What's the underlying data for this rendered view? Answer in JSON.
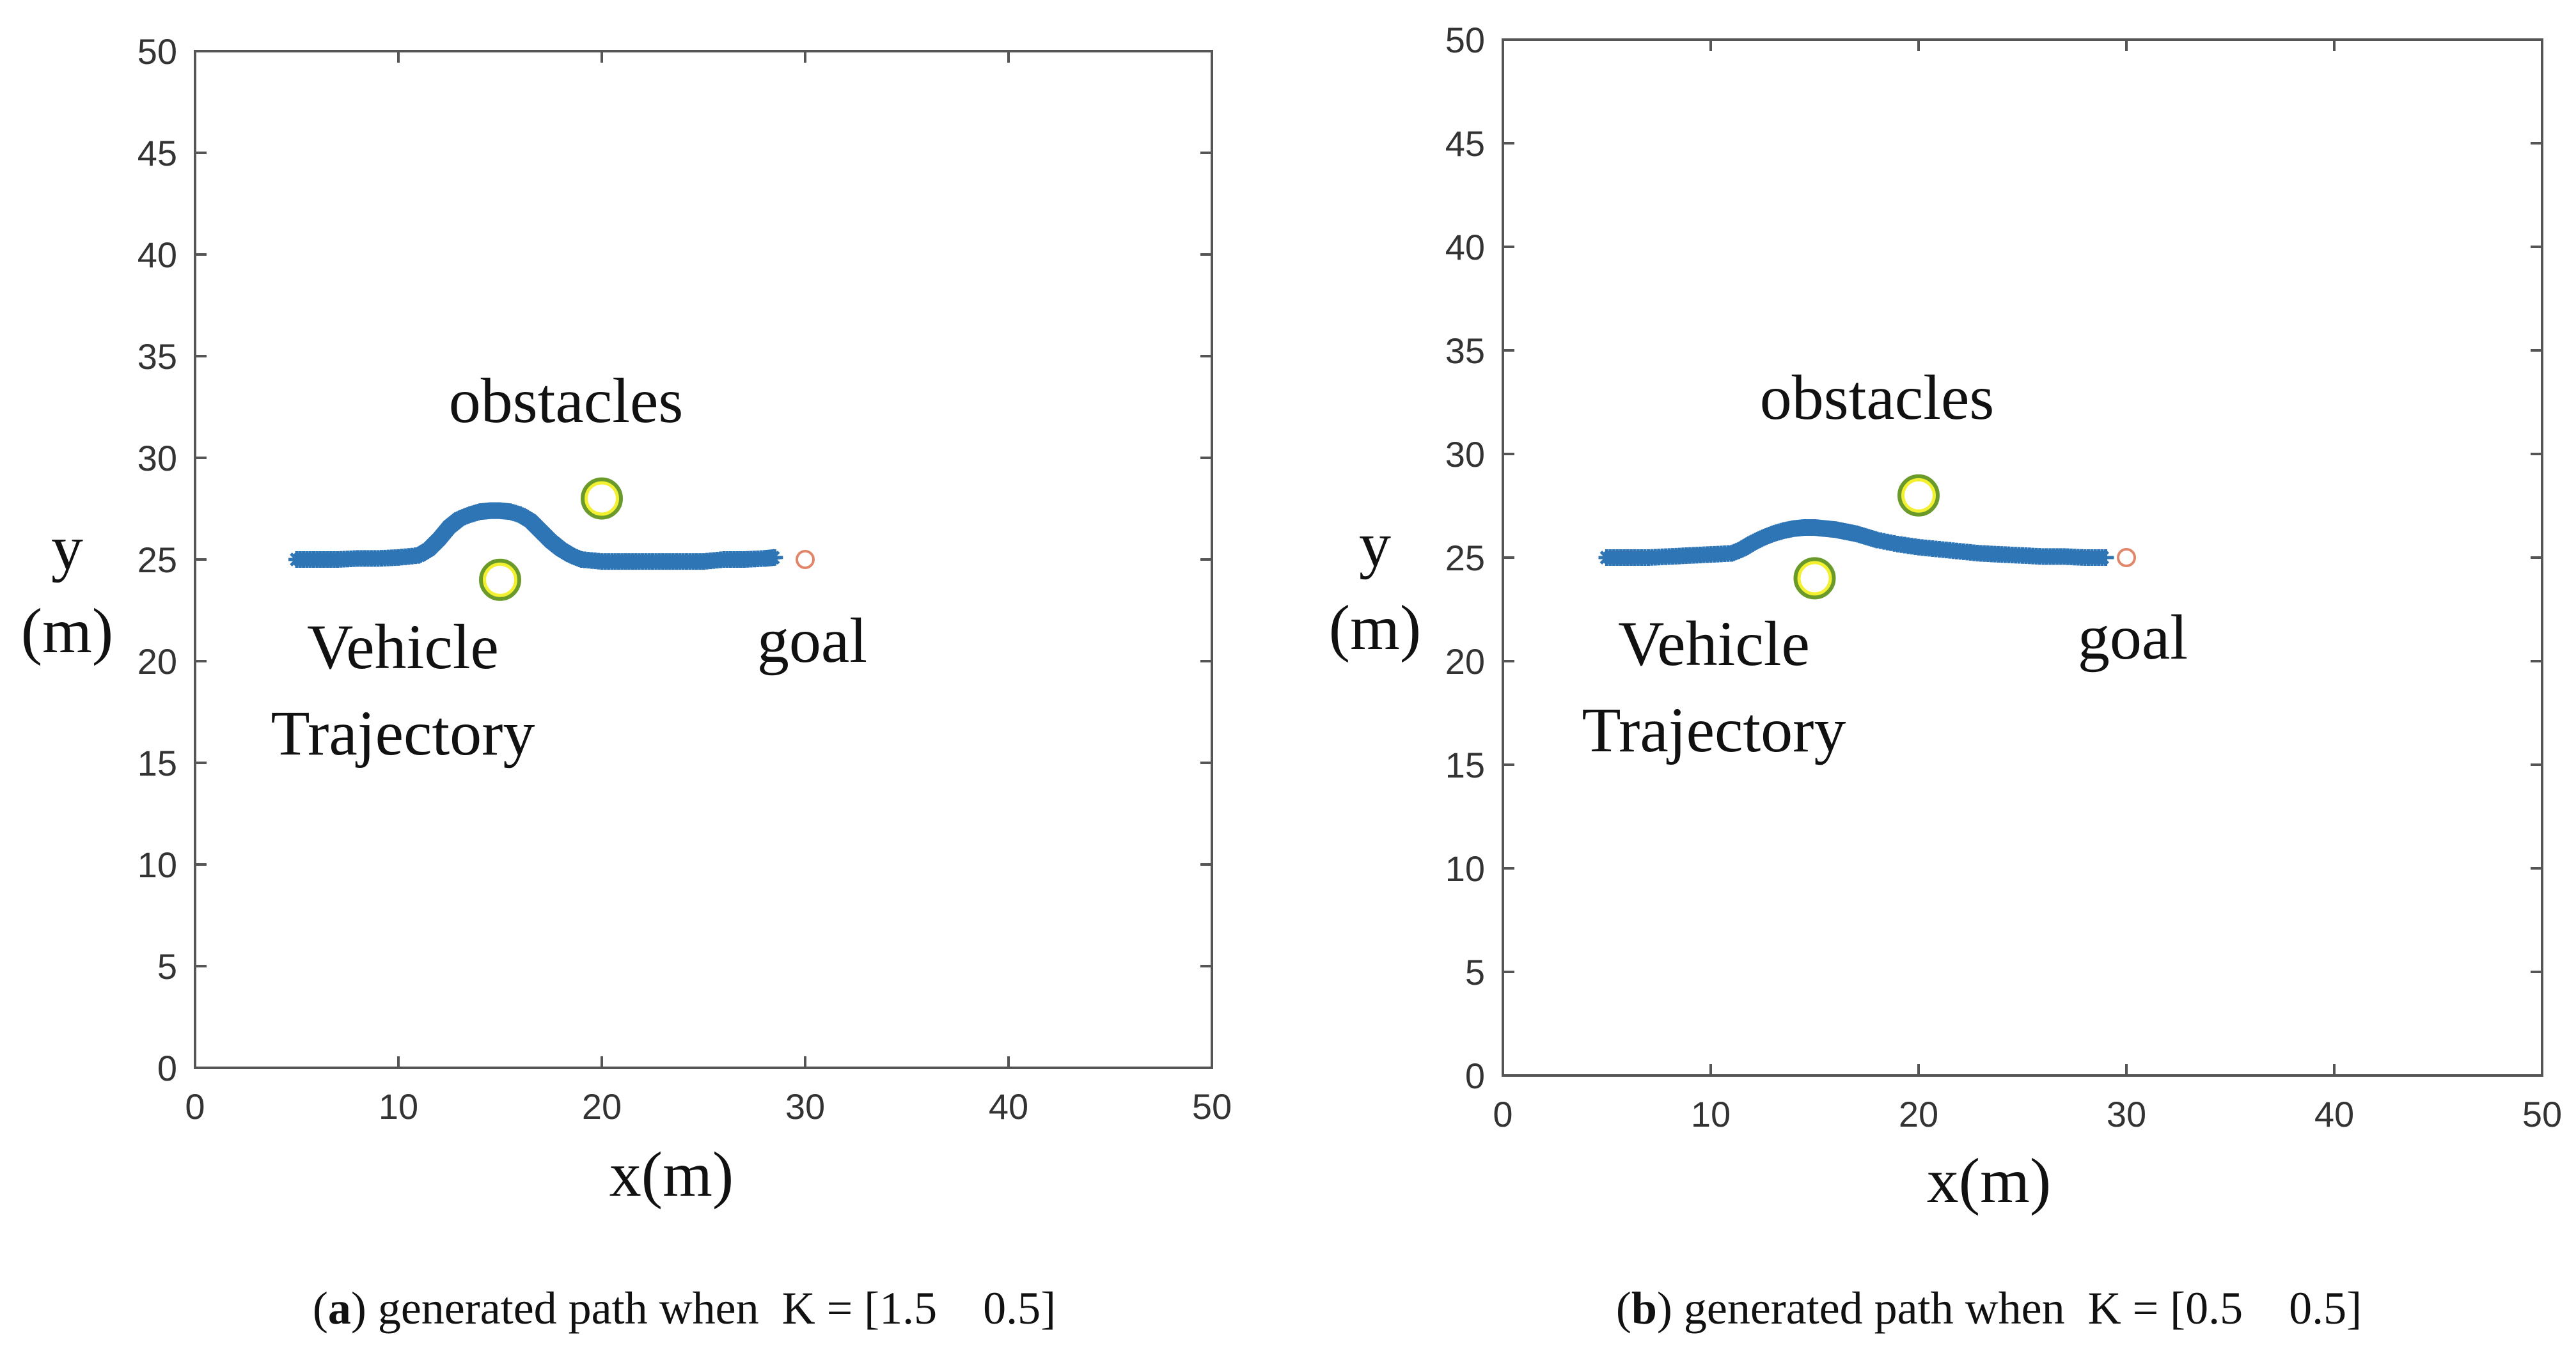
{
  "colors": {
    "trajectory": "#2E75B6",
    "obstacle_outer": "#6A9A2A",
    "obstacle_inner": "#F2F030",
    "goal": "#E0866A",
    "axis": "#555555"
  },
  "chart_data": [
    {
      "type": "scatter",
      "panel": "a",
      "xlabel": "x(m)",
      "ylabel_line1": "y",
      "ylabel_line2": "(m)",
      "xlim": [
        0,
        50
      ],
      "ylim": [
        0,
        50
      ],
      "xticks": [
        0,
        10,
        20,
        30,
        40,
        50
      ],
      "yticks": [
        0,
        5,
        10,
        15,
        20,
        25,
        30,
        35,
        40,
        45,
        50
      ],
      "grid": false,
      "annotations": {
        "obstacles": "obstacles",
        "vehicle": "Vehicle",
        "trajectory": "Trajectory",
        "goal": "goal"
      },
      "obstacles": [
        {
          "x": 20,
          "y": 28
        },
        {
          "x": 15,
          "y": 24
        }
      ],
      "goal": {
        "x": 30,
        "y": 25
      },
      "trajectory": {
        "name": "Vehicle Trajectory",
        "x": [
          5,
          6,
          7,
          8,
          9,
          10,
          11,
          11.5,
          12,
          12.5,
          13,
          13.5,
          14,
          14.5,
          15,
          15.5,
          16,
          16.5,
          17,
          17.5,
          18,
          18.5,
          19,
          20,
          21,
          22,
          23,
          24,
          25,
          26,
          27,
          28,
          28.5
        ],
        "y": [
          25,
          25,
          25,
          25.05,
          25.05,
          25.1,
          25.2,
          25.5,
          26.0,
          26.6,
          27.0,
          27.2,
          27.35,
          27.4,
          27.4,
          27.35,
          27.2,
          26.9,
          26.4,
          25.9,
          25.5,
          25.2,
          25.0,
          24.9,
          24.9,
          24.9,
          24.9,
          24.9,
          24.9,
          25.0,
          25.0,
          25.05,
          25.1
        ]
      },
      "caption": {
        "letter": "a",
        "text": "generated path when  K = [1.5    0.5]"
      }
    },
    {
      "type": "scatter",
      "panel": "b",
      "xlabel": "x(m)",
      "ylabel_line1": "y",
      "ylabel_line2": "(m)",
      "xlim": [
        0,
        50
      ],
      "ylim": [
        0,
        50
      ],
      "xticks": [
        0,
        10,
        20,
        30,
        40,
        50
      ],
      "yticks": [
        0,
        5,
        10,
        15,
        20,
        25,
        30,
        35,
        40,
        45,
        50
      ],
      "grid": false,
      "annotations": {
        "obstacles": "obstacles",
        "vehicle": "Vehicle",
        "trajectory": "Trajectory",
        "goal": "goal"
      },
      "obstacles": [
        {
          "x": 20,
          "y": 28
        },
        {
          "x": 15,
          "y": 24
        }
      ],
      "goal": {
        "x": 30,
        "y": 25
      },
      "trajectory": {
        "name": "Vehicle Trajectory",
        "x": [
          5,
          6,
          7,
          8,
          9,
          10,
          11,
          11.5,
          12,
          12.5,
          13,
          13.5,
          14,
          14.5,
          15,
          15.5,
          16,
          16.5,
          17,
          17.5,
          18,
          19,
          20,
          21,
          22,
          23,
          24,
          25,
          26,
          27,
          28,
          29
        ],
        "y": [
          25,
          25,
          25,
          25.05,
          25.1,
          25.15,
          25.2,
          25.4,
          25.7,
          25.95,
          26.15,
          26.3,
          26.4,
          26.45,
          26.45,
          26.4,
          26.35,
          26.25,
          26.15,
          26.0,
          25.85,
          25.65,
          25.5,
          25.4,
          25.3,
          25.2,
          25.15,
          25.1,
          25.05,
          25.05,
          25.0,
          25.0
        ]
      },
      "caption": {
        "letter": "b",
        "text": "generated path when  K = [0.5    0.5]"
      }
    }
  ]
}
